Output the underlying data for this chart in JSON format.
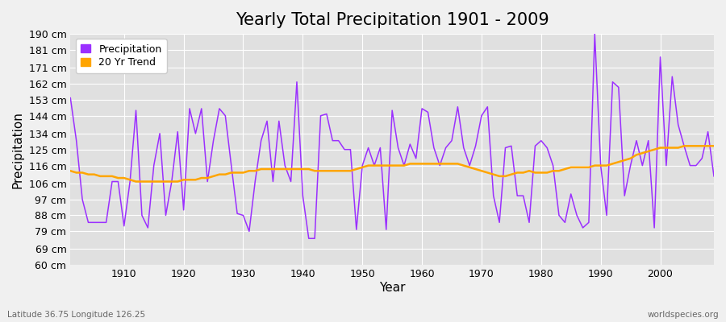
{
  "title": "Yearly Total Precipitation 1901 - 2009",
  "xlabel": "Year",
  "ylabel": "Precipitation",
  "subtitle": "Latitude 36.75 Longitude 126.25",
  "watermark": "worldspecies.org",
  "ylim": [
    60,
    190
  ],
  "yticks": [
    60,
    69,
    79,
    88,
    97,
    106,
    116,
    125,
    134,
    144,
    153,
    162,
    171,
    181,
    190
  ],
  "ytick_labels": [
    "60 cm",
    "69 cm",
    "79 cm",
    "88 cm",
    "97 cm",
    "106 cm",
    "116 cm",
    "125 cm",
    "134 cm",
    "144 cm",
    "153 cm",
    "162 cm",
    "171 cm",
    "181 cm",
    "190 cm"
  ],
  "years": [
    1901,
    1902,
    1903,
    1904,
    1905,
    1906,
    1907,
    1908,
    1909,
    1910,
    1911,
    1912,
    1913,
    1914,
    1915,
    1916,
    1917,
    1918,
    1919,
    1920,
    1921,
    1922,
    1923,
    1924,
    1925,
    1926,
    1927,
    1928,
    1929,
    1930,
    1931,
    1932,
    1933,
    1934,
    1935,
    1936,
    1937,
    1938,
    1939,
    1940,
    1941,
    1942,
    1943,
    1944,
    1945,
    1946,
    1947,
    1948,
    1949,
    1950,
    1951,
    1952,
    1953,
    1954,
    1955,
    1956,
    1957,
    1958,
    1959,
    1960,
    1961,
    1962,
    1963,
    1964,
    1965,
    1966,
    1967,
    1968,
    1969,
    1970,
    1971,
    1972,
    1973,
    1974,
    1975,
    1976,
    1977,
    1978,
    1979,
    1980,
    1981,
    1982,
    1983,
    1984,
    1985,
    1986,
    1987,
    1988,
    1989,
    1990,
    1991,
    1992,
    1993,
    1994,
    1995,
    1996,
    1997,
    1998,
    1999,
    2000,
    2001,
    2002,
    2003,
    2004,
    2005,
    2006,
    2007,
    2008,
    2009
  ],
  "precipitation": [
    154,
    130,
    97,
    84,
    84,
    84,
    84,
    107,
    107,
    82,
    107,
    147,
    88,
    81,
    116,
    134,
    88,
    107,
    135,
    91,
    148,
    134,
    148,
    107,
    130,
    148,
    144,
    116,
    89,
    88,
    79,
    107,
    130,
    141,
    107,
    141,
    116,
    107,
    163,
    99,
    75,
    75,
    144,
    145,
    130,
    130,
    125,
    125,
    80,
    116,
    126,
    116,
    126,
    80,
    147,
    126,
    116,
    128,
    120,
    148,
    146,
    126,
    116,
    126,
    130,
    149,
    126,
    116,
    127,
    144,
    149,
    99,
    84,
    126,
    127,
    99,
    99,
    84,
    127,
    130,
    126,
    116,
    88,
    84,
    100,
    88,
    81,
    84,
    190,
    116,
    88,
    163,
    160,
    99,
    116,
    130,
    116,
    130,
    81,
    177,
    116,
    166,
    139,
    127,
    116,
    116,
    120,
    135,
    110
  ],
  "trend": [
    113,
    112,
    112,
    111,
    111,
    110,
    110,
    110,
    109,
    109,
    108,
    107,
    107,
    107,
    107,
    107,
    107,
    107,
    107,
    108,
    108,
    108,
    109,
    109,
    110,
    111,
    111,
    112,
    112,
    112,
    113,
    113,
    114,
    114,
    114,
    114,
    114,
    114,
    114,
    114,
    114,
    113,
    113,
    113,
    113,
    113,
    113,
    113,
    114,
    115,
    116,
    116,
    116,
    116,
    116,
    116,
    116,
    117,
    117,
    117,
    117,
    117,
    117,
    117,
    117,
    117,
    116,
    115,
    114,
    113,
    112,
    111,
    110,
    110,
    111,
    112,
    112,
    113,
    112,
    112,
    112,
    113,
    113,
    114,
    115,
    115,
    115,
    115,
    116,
    116,
    116,
    117,
    118,
    119,
    120,
    122,
    123,
    124,
    125,
    126,
    126,
    126,
    126,
    127,
    127,
    127,
    127,
    127,
    127
  ],
  "precip_color": "#9B30FF",
  "trend_color": "#FFA500",
  "background_color": "#F0F0F0",
  "plot_bg_color": "#E0E0E0",
  "grid_color": "#FFFFFF",
  "title_fontsize": 15,
  "axis_fontsize": 9,
  "legend_fontsize": 9
}
